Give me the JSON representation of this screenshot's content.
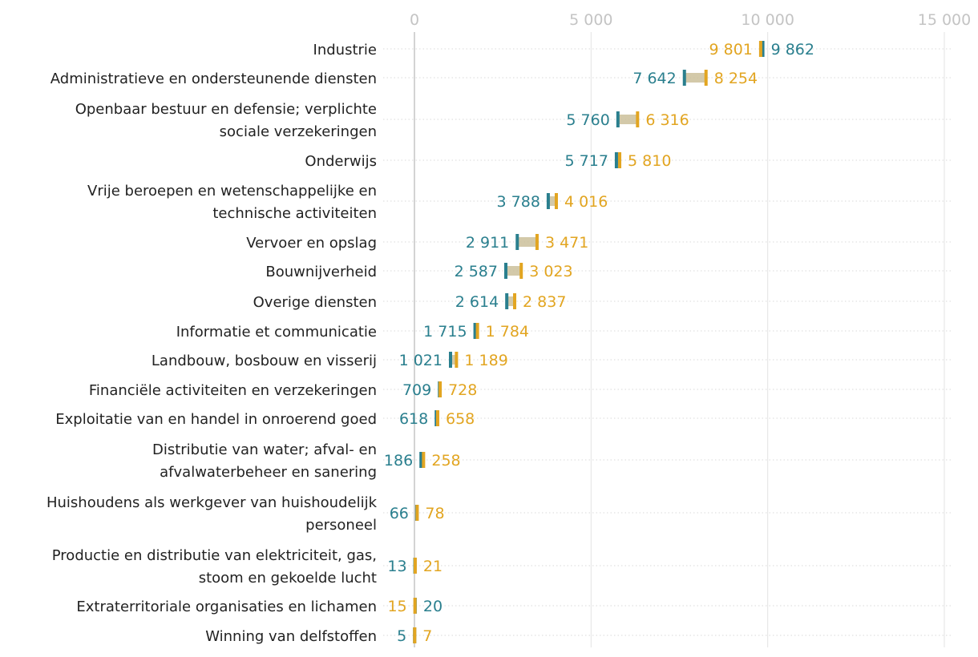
{
  "chart_data": {
    "type": "dumbbell",
    "colors": {
      "teal": "#2a7f8e",
      "gold": "#e2a521",
      "connector": "#cbbf9a",
      "grid": "#e3e3e3",
      "row_rule": "#d9d9d9",
      "axis_zero": "#c8c8c8",
      "tick_text": "#c4c4c4",
      "label_text": "#222222"
    },
    "x_ticks": [
      0,
      5000,
      10000,
      15000
    ],
    "x_tick_labels": [
      "0",
      "5 000",
      "10 000",
      "15 000"
    ],
    "xlim": [
      0,
      15000
    ],
    "series": [
      {
        "name": "teal",
        "color": "#2a7f8e"
      },
      {
        "name": "gold",
        "color": "#e2a521"
      }
    ],
    "rows": [
      {
        "label": [
          "Industrie"
        ],
        "teal": 9862,
        "gold": 9801,
        "teal_label": "9 862",
        "gold_label": "9 801"
      },
      {
        "label": [
          "Administratieve en ondersteunende diensten"
        ],
        "teal": 7642,
        "gold": 8254,
        "teal_label": "7 642",
        "gold_label": "8 254"
      },
      {
        "label": [
          "Openbaar bestuur en defensie; verplichte",
          "sociale verzekeringen"
        ],
        "teal": 5760,
        "gold": 6316,
        "teal_label": "5 760",
        "gold_label": "6 316"
      },
      {
        "label": [
          "Onderwijs"
        ],
        "teal": 5717,
        "gold": 5810,
        "teal_label": "5 717",
        "gold_label": "5 810"
      },
      {
        "label": [
          "Vrije beroepen en wetenschappelijke en",
          "technische activiteiten"
        ],
        "teal": 3788,
        "gold": 4016,
        "teal_label": "3 788",
        "gold_label": "4 016"
      },
      {
        "label": [
          "Vervoer en opslag"
        ],
        "teal": 2911,
        "gold": 3471,
        "teal_label": "2 911",
        "gold_label": "3 471"
      },
      {
        "label": [
          "Bouwnijverheid"
        ],
        "teal": 2587,
        "gold": 3023,
        "teal_label": "2 587",
        "gold_label": "3 023"
      },
      {
        "label": [
          "Overige diensten"
        ],
        "teal": 2614,
        "gold": 2837,
        "teal_label": "2 614",
        "gold_label": "2 837"
      },
      {
        "label": [
          "Informatie et communicatie"
        ],
        "teal": 1715,
        "gold": 1784,
        "teal_label": "1 715",
        "gold_label": "1 784"
      },
      {
        "label": [
          "Landbouw, bosbouw en visserij"
        ],
        "teal": 1021,
        "gold": 1189,
        "teal_label": "1 021",
        "gold_label": "1 189"
      },
      {
        "label": [
          "Financiële activiteiten en verzekeringen"
        ],
        "teal": 709,
        "gold": 728,
        "teal_label": "709",
        "gold_label": "728"
      },
      {
        "label": [
          "Exploitatie van en handel in onroerend goed"
        ],
        "teal": 618,
        "gold": 658,
        "teal_label": "618",
        "gold_label": "658"
      },
      {
        "label": [
          "Distributie van water; afval- en",
          "afvalwaterbeheer en sanering"
        ],
        "teal": 186,
        "gold": 258,
        "teal_label": "186",
        "gold_label": "258"
      },
      {
        "label": [
          "Huishoudens als werkgever van huishoudelijk",
          "personeel"
        ],
        "teal": 66,
        "gold": 78,
        "teal_label": "66",
        "gold_label": "78"
      },
      {
        "label": [
          "Productie en distributie van elektriciteit, gas,",
          "stoom en gekoelde lucht"
        ],
        "teal": 13,
        "gold": 21,
        "teal_label": "13",
        "gold_label": "21"
      },
      {
        "label": [
          "Extraterritoriale organisaties en lichamen"
        ],
        "teal": 20,
        "gold": 15,
        "teal_label": "20",
        "gold_label": "15"
      },
      {
        "label": [
          "Winning van delfstoffen"
        ],
        "teal": 5,
        "gold": 7,
        "teal_label": "5",
        "gold_label": "7"
      }
    ]
  }
}
